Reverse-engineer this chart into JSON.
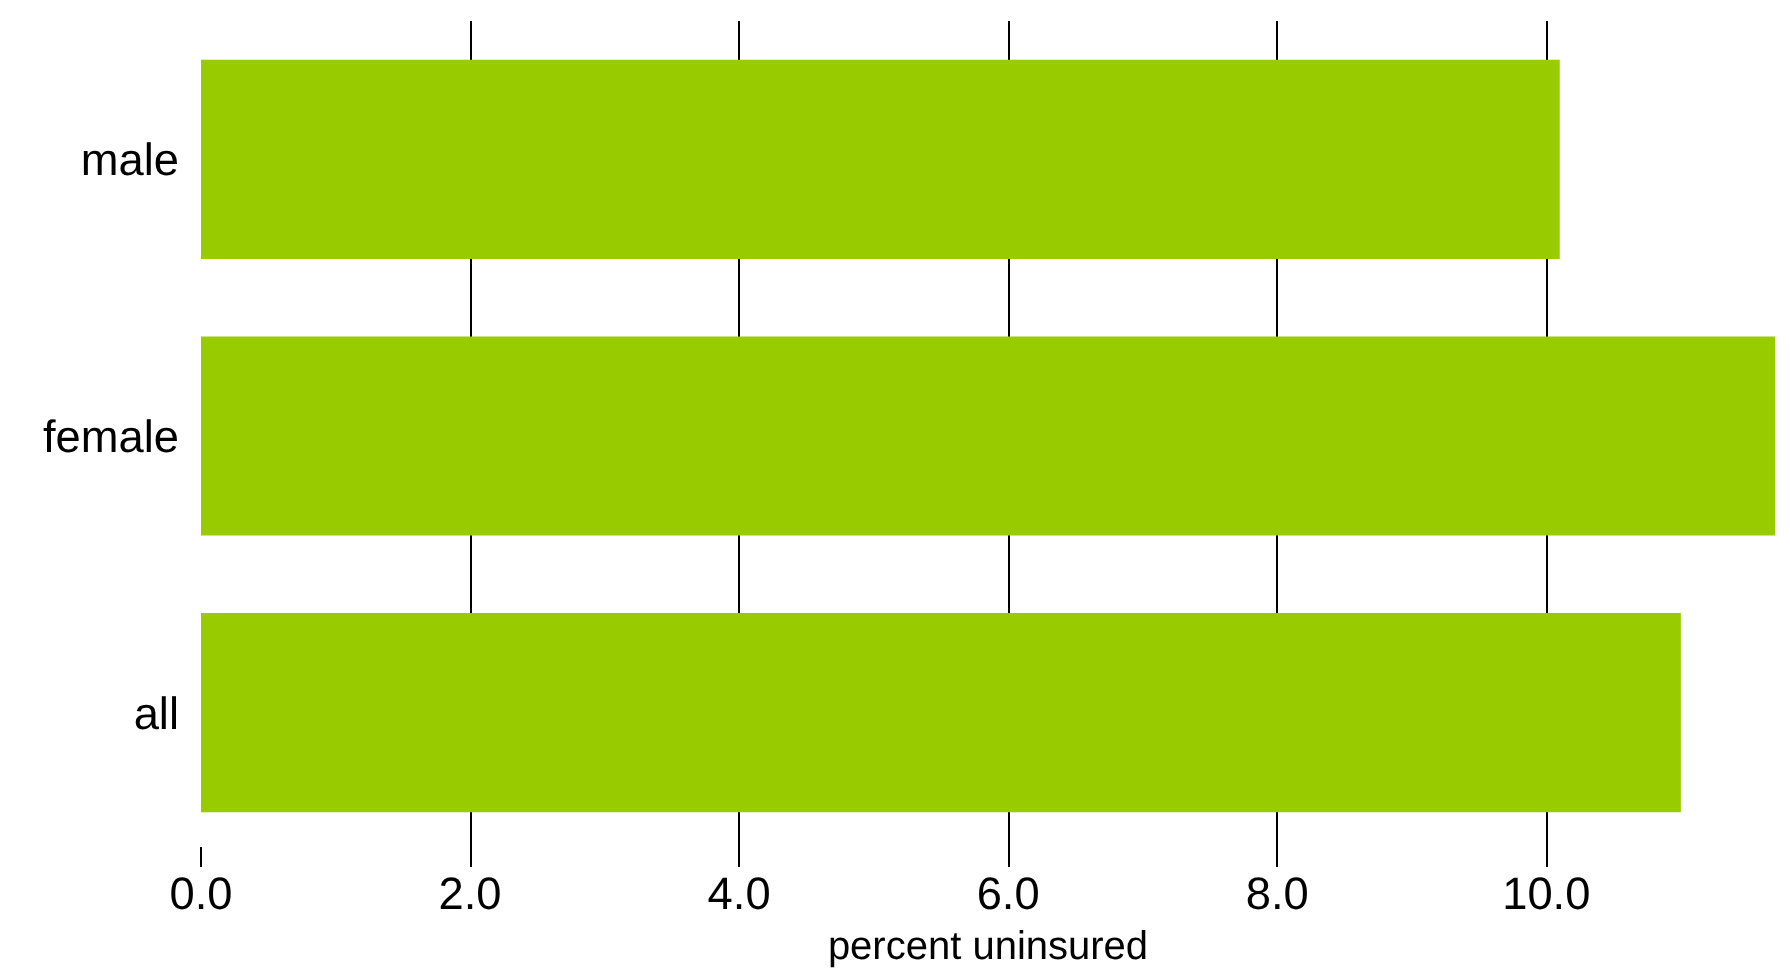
{
  "chart_data": {
    "type": "bar",
    "orientation": "horizontal",
    "xlabel": "percent uninsured",
    "categories": [
      "male",
      "female",
      "all"
    ],
    "values": [
      10.1,
      11.7,
      11.0
    ],
    "color": "#99cc00",
    "xlim": [
      0,
      11.7
    ],
    "xticks": [
      {
        "value": 0,
        "label": "0.0"
      },
      {
        "value": 2,
        "label": "2.0"
      },
      {
        "value": 4,
        "label": "4.0"
      },
      {
        "value": 6,
        "label": "6.0"
      },
      {
        "value": 8,
        "label": "8.0"
      },
      {
        "value": 10,
        "label": "10.0"
      }
    ],
    "grid": "x"
  }
}
